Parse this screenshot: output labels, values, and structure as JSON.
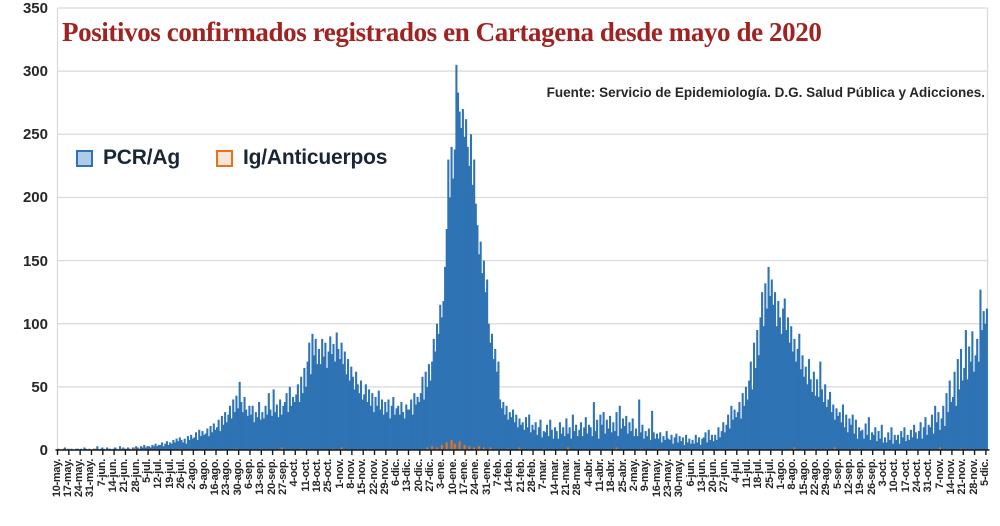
{
  "chart_data": {
    "type": "bar",
    "title": "Positivos confirmados registrados en Cartagena desde mayo de 2020",
    "source": "Fuente: Servicio de Epidemiología. D.G. Salud Pública y Adicciones.",
    "xlabel": "",
    "ylabel": "",
    "ylim": [
      0,
      350
    ],
    "y_ticks": [
      0,
      50,
      100,
      150,
      200,
      250,
      300,
      350
    ],
    "grid": "horizontal",
    "legend_position": "inside-top-left",
    "days_per_tick": 7,
    "x_tick_labels": [
      "10-may.",
      "17-may.",
      "24-may.",
      "31-may.",
      "7-jun.",
      "14-jun.",
      "21-jun.",
      "28-jun.",
      "5-jul.",
      "12-jul.",
      "19-jul.",
      "26-jul.",
      "2-ago.",
      "9-ago.",
      "16-ago.",
      "23-ago.",
      "30-ago.",
      "6-sep.",
      "13-sep.",
      "20-sep.",
      "27-sep.",
      "4-oct.",
      "11-oct.",
      "18-oct.",
      "25-oct.",
      "1-nov.",
      "8-nov.",
      "15-nov.",
      "22-nov.",
      "29-nov.",
      "6-dic.",
      "13-dic.",
      "20-dic.",
      "27-dic.",
      "3-ene.",
      "10-ene.",
      "17-ene.",
      "24-ene.",
      "31-ene.",
      "7-feb.",
      "14-feb.",
      "21-feb.",
      "28-feb.",
      "7-mar.",
      "14-mar.",
      "21-mar.",
      "28-mar.",
      "4-abr.",
      "11-abr.",
      "18-abr.",
      "25-abr.",
      "2-may.",
      "9-may.",
      "16-may.",
      "23-may.",
      "30-may.",
      "6-jun.",
      "13-jun.",
      "20-jun.",
      "27-jun.",
      "4-jul.",
      "11-jul.",
      "18-jul.",
      "25-jul.",
      "1-ago.",
      "8-ago.",
      "15-ago.",
      "22-ago.",
      "29-ago.",
      "5-sep.",
      "12-sep.",
      "19-sep.",
      "26-sep.",
      "3-oct.",
      "10-oct.",
      "17-oct.",
      "24-oct.",
      "31-oct.",
      "7-nov.",
      "14-nov.",
      "21-nov.",
      "28-nov.",
      "5-dic."
    ],
    "series": [
      {
        "name": "PCR/Ag",
        "color": "#2E73B4",
        "values": [
          1,
          0,
          0,
          1,
          2,
          0,
          1,
          0,
          1,
          0,
          0,
          1,
          1,
          0,
          1,
          0,
          2,
          1,
          0,
          1,
          0,
          0,
          1,
          1,
          3,
          0,
          1,
          2,
          1,
          0,
          2,
          1,
          1,
          0,
          1,
          2,
          1,
          0,
          3,
          1,
          2,
          1,
          1,
          2,
          1,
          0,
          2,
          1,
          3,
          2,
          1,
          3,
          2,
          4,
          2,
          3,
          3,
          2,
          4,
          3,
          5,
          3,
          4,
          4,
          6,
          3,
          5,
          7,
          4,
          6,
          5,
          8,
          6,
          9,
          7,
          10,
          8,
          6,
          9,
          5,
          11,
          8,
          12,
          9,
          10,
          14,
          8,
          16,
          11,
          15,
          12,
          13,
          17,
          11,
          19,
          14,
          21,
          16,
          18,
          24,
          15,
          27,
          20,
          30,
          22,
          28,
          35,
          25,
          40,
          30,
          43,
          33,
          54,
          38,
          30,
          42,
          32,
          27,
          35,
          28,
          35,
          22,
          30,
          26,
          38,
          24,
          30,
          25,
          35,
          28,
          45,
          32,
          27,
          48,
          30,
          36,
          26,
          40,
          28,
          35,
          38,
          45,
          30,
          50,
          35,
          42,
          38,
          44,
          52,
          38,
          58,
          45,
          65,
          50,
          70,
          85,
          60,
          92,
          75,
          88,
          68,
          80,
          68,
          88,
          74,
          85,
          65,
          78,
          90,
          76,
          84,
          70,
          93,
          80,
          72,
          85,
          68,
          78,
          60,
          72,
          55,
          66,
          58,
          48,
          62,
          52,
          45,
          55,
          40,
          44,
          52,
          38,
          48,
          35,
          45,
          30,
          42,
          35,
          47,
          32,
          40,
          28,
          38,
          30,
          40,
          25,
          35,
          42,
          28,
          33,
          35,
          28,
          38,
          30,
          25,
          36,
          32,
          32,
          40,
          28,
          45,
          36,
          42,
          38,
          45,
          58,
          40,
          62,
          50,
          68,
          55,
          70,
          88,
          78,
          100,
          92,
          115,
          105,
          118,
          145,
          175,
          230,
          200,
          240,
          215,
          238,
          305,
          283,
          268,
          255,
          270,
          248,
          262,
          240,
          225,
          250,
          210,
          230,
          195,
          178,
          155,
          165,
          140,
          150,
          125,
          135,
          100,
          85,
          92,
          72,
          80,
          62,
          70,
          40,
          33,
          38,
          28,
          35,
          24,
          30,
          26,
          32,
          22,
          28,
          18,
          25,
          20,
          22,
          16,
          26,
          18,
          28,
          14,
          20,
          16,
          22,
          12,
          18,
          24,
          10,
          15,
          14,
          20,
          11,
          24,
          16,
          9,
          18,
          15,
          9,
          22,
          13,
          18,
          11,
          25,
          13,
          18,
          9,
          28,
          15,
          20,
          11,
          16,
          22,
          11,
          18,
          26,
          13,
          20,
          18,
          11,
          38,
          15,
          24,
          9,
          28,
          20,
          30,
          13,
          24,
          17,
          27,
          14,
          22,
          15,
          30,
          11,
          35,
          17,
          25,
          19,
          27,
          13,
          22,
          15,
          25,
          11,
          17,
          11,
          40,
          14,
          20,
          9,
          15,
          11,
          17,
          8,
          31,
          14,
          9,
          13,
          9,
          14,
          6,
          11,
          8,
          15,
          9,
          8,
          12,
          5,
          10,
          13,
          6,
          11,
          7,
          10,
          4,
          12,
          6,
          9,
          5,
          8,
          5,
          12,
          6,
          10,
          4,
          9,
          10,
          14,
          6,
          16,
          8,
          12,
          7,
          12,
          8,
          18,
          10,
          15,
          22,
          14,
          20,
          28,
          17,
          35,
          24,
          32,
          26,
          30,
          38,
          25,
          45,
          35,
          50,
          40,
          55,
          70,
          48,
          85,
          65,
          95,
          75,
          105,
          125,
          98,
          132,
          112,
          145,
          122,
          135,
          115,
          125,
          98,
          118,
          105,
          92,
          112,
          120,
          95,
          105,
          85,
          98,
          78,
          88,
          70,
          80,
          92,
          64,
          75,
          58,
          66,
          52,
          72,
          56,
          46,
          62,
          43,
          56,
          42,
          70,
          48,
          38,
          52,
          34,
          40,
          46,
          30,
          36,
          24,
          33,
          27,
          30,
          22,
          36,
          18,
          28,
          14,
          25,
          20,
          28,
          13,
          24,
          9,
          18,
          15,
          16,
          9,
          21,
          12,
          26,
          8,
          14,
          12,
          18,
          7,
          15,
          9,
          20,
          6,
          10,
          6,
          14,
          8,
          18,
          5,
          12,
          8,
          12,
          5,
          15,
          10,
          18,
          7,
          12,
          8,
          16,
          10,
          20,
          14,
          9,
          15,
          22,
          9,
          18,
          26,
          12,
          20,
          18,
          28,
          13,
          35,
          22,
          30,
          16,
          25,
          35,
          19,
          45,
          30,
          55,
          38,
          42,
          62,
          35,
          72,
          48,
          80,
          55,
          65,
          95,
          56,
          82,
          70,
          94,
          62,
          75,
          88,
          70,
          127,
          95,
          110,
          100,
          112
        ]
      },
      {
        "name": "Ig/Anticuerpos",
        "color": "#E8731C",
        "points": [
          [
            6,
            1
          ],
          [
            22,
            1
          ],
          [
            38,
            1
          ],
          [
            47,
            2
          ],
          [
            58,
            1
          ],
          [
            75,
            1
          ],
          [
            110,
            1
          ],
          [
            125,
            1
          ],
          [
            138,
            2
          ],
          [
            150,
            1
          ],
          [
            170,
            1
          ],
          [
            175,
            2
          ],
          [
            228,
            2
          ],
          [
            231,
            3
          ],
          [
            234,
            2
          ],
          [
            237,
            4
          ],
          [
            240,
            6
          ],
          [
            243,
            8
          ],
          [
            245,
            5
          ],
          [
            248,
            7
          ],
          [
            251,
            4
          ],
          [
            254,
            3
          ],
          [
            257,
            2
          ],
          [
            260,
            3
          ],
          [
            263,
            2
          ],
          [
            267,
            2
          ],
          [
            278,
            1
          ],
          [
            285,
            2
          ],
          [
            300,
            1
          ],
          [
            315,
            2
          ],
          [
            345,
            2
          ],
          [
            360,
            1
          ],
          [
            370,
            1
          ],
          [
            455,
            2
          ],
          [
            468,
            1
          ],
          [
            475,
            1
          ],
          [
            480,
            2
          ],
          [
            495,
            1
          ],
          [
            545,
            2
          ],
          [
            558,
            1
          ]
        ]
      }
    ]
  },
  "legend": {
    "items": [
      {
        "label": "PCR/Ag",
        "fill": "#AECBEA",
        "border": "#2E73B4"
      },
      {
        "label": "Ig/Anticuerpos",
        "fill": "#FBE5D6",
        "border": "#E8731C"
      }
    ]
  },
  "colors": {
    "title": "#A02322",
    "grid": "#D9D9D9",
    "axis": "#1A1A1A",
    "bar_blue": "#2E73B4",
    "bar_orange": "#E8731C"
  }
}
